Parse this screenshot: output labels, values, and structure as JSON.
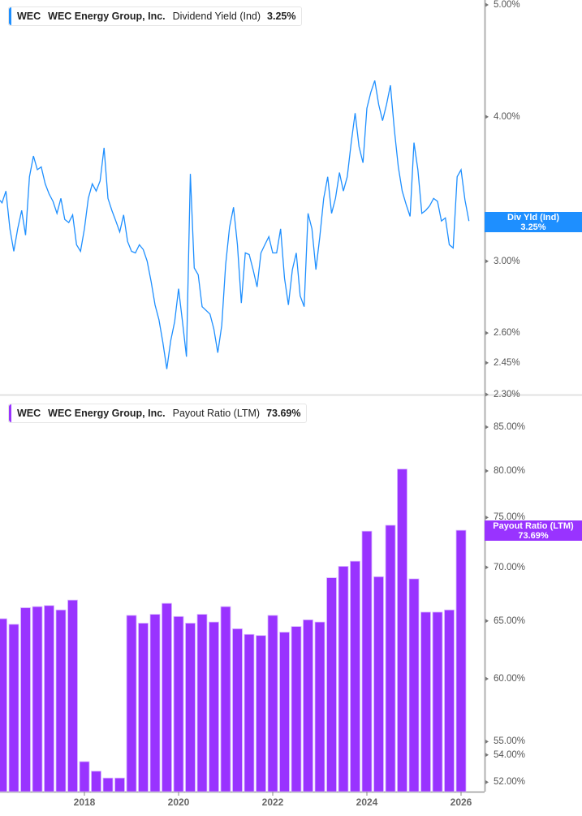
{
  "top_legend": {
    "ticker": "WEC",
    "company": "WEC Energy Group, Inc.",
    "metric": "Dividend Yield (Ind)",
    "value": "3.25%",
    "color": "#1e8fff"
  },
  "bottom_legend": {
    "ticker": "WEC",
    "company": "WEC Energy Group, Inc.",
    "metric": "Payout Ratio (LTM)",
    "value": "73.69%",
    "color": "#9933ff"
  },
  "top_flag": {
    "label": "Div Yld (Ind)",
    "value": "3.25%"
  },
  "bottom_flag": {
    "label": "Payout Ratio (LTM)",
    "value": "73.69%"
  },
  "x_ticks": [
    "2018",
    "2020",
    "2022",
    "2024",
    "2026"
  ],
  "chart_data": [
    {
      "type": "line",
      "scale": "log",
      "color": "#1e8fff",
      "ylim": [
        2.3,
        5.0
      ],
      "y_ticks": [
        "5.00%",
        "4.00%",
        "3.00%",
        "2.60%",
        "2.45%",
        "2.30%"
      ],
      "y_tick_values": [
        5.0,
        4.0,
        3.0,
        2.6,
        2.45,
        2.3
      ],
      "dates": [
        "2016-03",
        "2016-04",
        "2016-05",
        "2016-06",
        "2016-07",
        "2016-08",
        "2016-09",
        "2016-10",
        "2016-11",
        "2016-12",
        "2017-01",
        "2017-02",
        "2017-03",
        "2017-04",
        "2017-05",
        "2017-06",
        "2017-07",
        "2017-08",
        "2017-09",
        "2017-10",
        "2017-11",
        "2017-12",
        "2018-01",
        "2018-02",
        "2018-03",
        "2018-04",
        "2018-05",
        "2018-06",
        "2018-07",
        "2018-08",
        "2018-09",
        "2018-10",
        "2018-11",
        "2018-12",
        "2019-01",
        "2019-02",
        "2019-03",
        "2019-04",
        "2019-05",
        "2019-06",
        "2019-07",
        "2019-08",
        "2019-09",
        "2019-10",
        "2019-11",
        "2019-12",
        "2020-01",
        "2020-02",
        "2020-03",
        "2020-04",
        "2020-05",
        "2020-06",
        "2020-07",
        "2020-08",
        "2020-09",
        "2020-10",
        "2020-11",
        "2020-12",
        "2021-01",
        "2021-02",
        "2021-03",
        "2021-04",
        "2021-05",
        "2021-06",
        "2021-07",
        "2021-08",
        "2021-09",
        "2021-10",
        "2021-11",
        "2021-12",
        "2022-01",
        "2022-02",
        "2022-03",
        "2022-04",
        "2022-05",
        "2022-06",
        "2022-07",
        "2022-08",
        "2022-09",
        "2022-10",
        "2022-11",
        "2022-12",
        "2023-01",
        "2023-02",
        "2023-03",
        "2023-04",
        "2023-05",
        "2023-06",
        "2023-07",
        "2023-08",
        "2023-09",
        "2023-10",
        "2023-11",
        "2023-12",
        "2024-01",
        "2024-02",
        "2024-03",
        "2024-04",
        "2024-05",
        "2024-06",
        "2024-07",
        "2024-08",
        "2024-09",
        "2024-10",
        "2024-11",
        "2024-12",
        "2025-01",
        "2025-02",
        "2025-03",
        "2025-04",
        "2025-05",
        "2025-06",
        "2025-07",
        "2025-08",
        "2025-09",
        "2025-10",
        "2025-11",
        "2025-12",
        "2026-01",
        "2026-02",
        "2026-03"
      ],
      "values": [
        3.4,
        3.37,
        3.45,
        3.2,
        3.06,
        3.2,
        3.32,
        3.16,
        3.55,
        3.7,
        3.6,
        3.62,
        3.5,
        3.43,
        3.38,
        3.3,
        3.4,
        3.26,
        3.24,
        3.29,
        3.1,
        3.06,
        3.2,
        3.4,
        3.5,
        3.45,
        3.52,
        3.76,
        3.4,
        3.32,
        3.25,
        3.18,
        3.29,
        3.12,
        3.06,
        3.05,
        3.1,
        3.07,
        3.0,
        2.88,
        2.75,
        2.67,
        2.55,
        2.42,
        2.56,
        2.66,
        2.84,
        2.66,
        2.48,
        3.57,
        2.96,
        2.92,
        2.74,
        2.72,
        2.7,
        2.62,
        2.5,
        2.64,
        2.98,
        3.21,
        3.34,
        3.1,
        2.76,
        3.05,
        3.04,
        2.95,
        2.85,
        3.05,
        3.1,
        3.15,
        3.05,
        3.05,
        3.2,
        2.9,
        2.75,
        2.95,
        3.05,
        2.8,
        2.74,
        3.3,
        3.2,
        2.95,
        3.15,
        3.4,
        3.55,
        3.3,
        3.4,
        3.58,
        3.45,
        3.55,
        3.8,
        4.03,
        3.77,
        3.65,
        4.07,
        4.2,
        4.3,
        4.1,
        3.97,
        4.1,
        4.26,
        3.9,
        3.62,
        3.45,
        3.36,
        3.28,
        3.8,
        3.6,
        3.3,
        3.32,
        3.35,
        3.4,
        3.38,
        3.25,
        3.27,
        3.1,
        3.08,
        3.55,
        3.6,
        3.39,
        3.25
      ]
    },
    {
      "type": "bar",
      "scale": "log",
      "color": "#9933ff",
      "ylim": [
        51.3,
        85.0
      ],
      "y_ticks": [
        "85.00%",
        "80.00%",
        "75.00%",
        "70.00%",
        "65.00%",
        "60.00%",
        "55.00%",
        "54.00%",
        "52.00%"
      ],
      "y_tick_values": [
        85,
        80,
        75,
        70,
        65,
        60,
        55,
        54,
        52
      ],
      "dates": [
        "2016-04",
        "2016-07",
        "2016-10",
        "2017-01",
        "2017-04",
        "2017-07",
        "2017-10",
        "2018-01",
        "2018-04",
        "2018-07",
        "2018-10",
        "2019-01",
        "2019-04",
        "2019-07",
        "2019-10",
        "2020-01",
        "2020-04",
        "2020-07",
        "2020-10",
        "2021-01",
        "2021-04",
        "2021-07",
        "2021-10",
        "2022-01",
        "2022-04",
        "2022-07",
        "2022-10",
        "2023-01",
        "2023-04",
        "2023-07",
        "2023-10",
        "2024-01",
        "2024-04",
        "2024-07",
        "2024-10",
        "2025-01",
        "2025-04",
        "2025-07",
        "2025-10",
        "2026-01"
      ],
      "values": [
        65.2,
        64.7,
        66.2,
        66.3,
        66.4,
        66.0,
        66.9,
        53.5,
        52.8,
        52.3,
        52.3,
        65.5,
        64.8,
        65.6,
        66.6,
        65.4,
        64.8,
        65.6,
        64.9,
        66.3,
        64.3,
        63.8,
        63.7,
        65.5,
        64.0,
        64.5,
        65.1,
        64.9,
        69.0,
        70.1,
        70.6,
        73.6,
        69.1,
        74.2,
        80.2,
        68.9,
        65.8,
        65.8,
        66.0,
        73.69
      ]
    }
  ]
}
